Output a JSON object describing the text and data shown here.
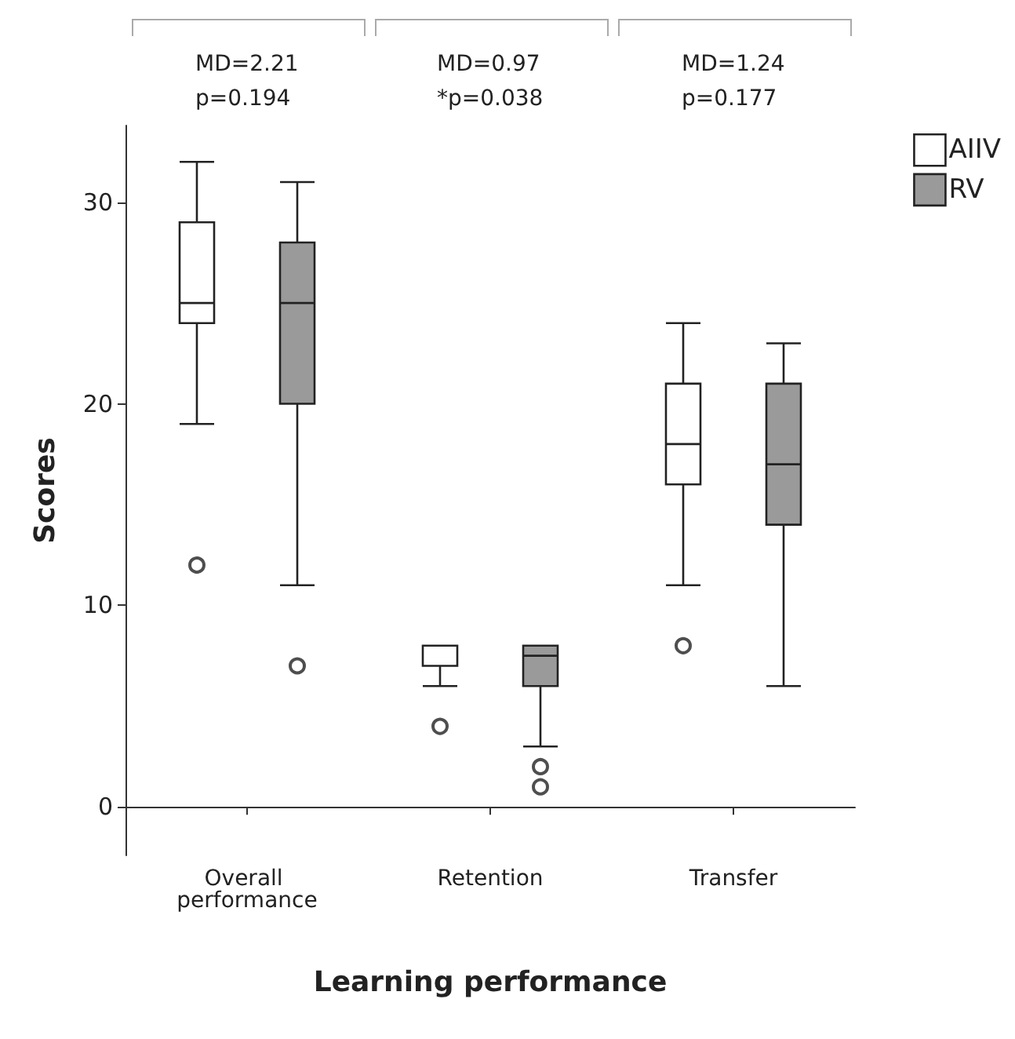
{
  "chart_data": {
    "type": "box",
    "xlabel": "Learning performance",
    "ylabel": "Scores",
    "categories": [
      "Overall performance",
      "Retention",
      "Transfer"
    ],
    "ylim": [
      -2.4,
      33.8
    ],
    "yticks": [
      0,
      10,
      20,
      30
    ],
    "legend": "top right",
    "annotations": [
      "MD=2.21\np=0.194",
      "MD=0.97\n*p=0.038",
      "MD=1.24\np=0.177"
    ],
    "series": [
      {
        "name": "AIIV",
        "color": "#ffffff",
        "boxes": [
          {
            "low": 19,
            "q1": 24,
            "median": 25,
            "q3": 29,
            "high": 32,
            "outliers": [
              12
            ]
          },
          {
            "low": 6,
            "q1": 7,
            "median": 8,
            "q3": 8,
            "high": 8,
            "outliers": [
              4
            ]
          },
          {
            "low": 11,
            "q1": 16,
            "median": 18,
            "q3": 21,
            "high": 24,
            "outliers": [
              8
            ]
          }
        ]
      },
      {
        "name": "RV",
        "color": "#9a9a9a",
        "boxes": [
          {
            "low": 11,
            "q1": 20,
            "median": 25,
            "q3": 28,
            "high": 31,
            "outliers": [
              7
            ]
          },
          {
            "low": 3,
            "q1": 6,
            "median": 7.5,
            "q3": 8,
            "high": 8,
            "outliers": [
              2,
              1
            ]
          },
          {
            "low": 6,
            "q1": 14,
            "median": 17,
            "q3": 21,
            "high": 23
          }
        ]
      }
    ]
  }
}
